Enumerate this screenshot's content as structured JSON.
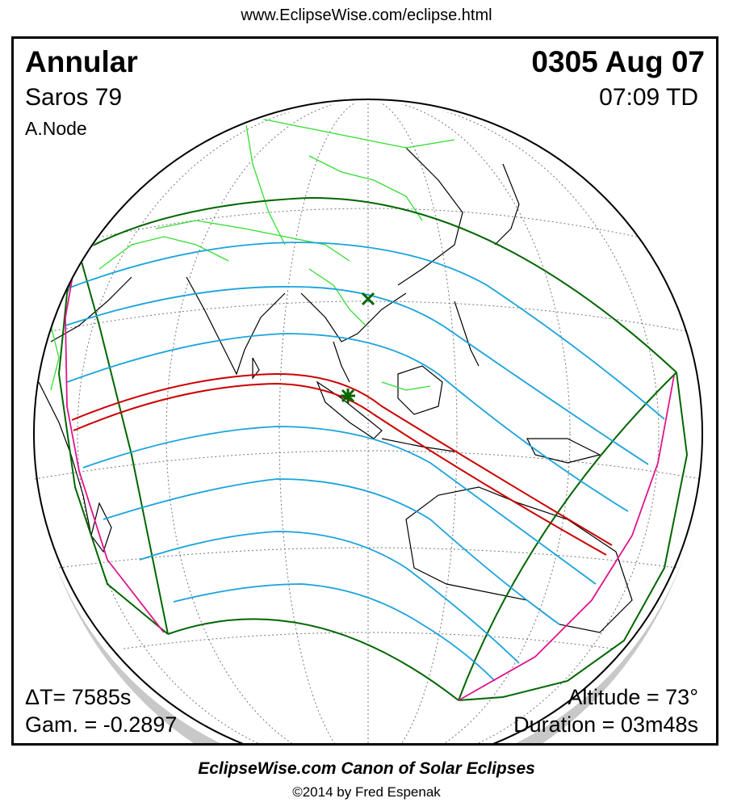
{
  "header": {
    "url": "www.EclipseWise.com/eclipse.html"
  },
  "panel": {
    "eclipse_type": "Annular",
    "date": "0305 Aug 07",
    "saros": "Saros  79",
    "time": "07:09 TD",
    "node": "A.Node",
    "delta_t": "ΔT=   7585s",
    "gamma": "Gam. = -0.2897",
    "altitude": "Altitude = 73°",
    "duration": "Duration = 03m48s"
  },
  "footer": {
    "canon": "EclipseWise.com Canon of Solar Eclipses",
    "copyright": "©2014 by Fred Espenak"
  },
  "colors": {
    "globe_outline": "#000000",
    "graticule": "#888888",
    "land_coast": "#000000",
    "borders": "#33dd33",
    "penumbra_limits": "#006600",
    "partial_isolines": "#1aa3dd",
    "central_path": "#cc0000",
    "rise_set_curves": "#e0148c",
    "globe_shadow": "#c8c8c8"
  },
  "markers": {
    "greatest_eclipse": "asterisk-star-icon",
    "subsolar_point": "cross-x-icon"
  }
}
